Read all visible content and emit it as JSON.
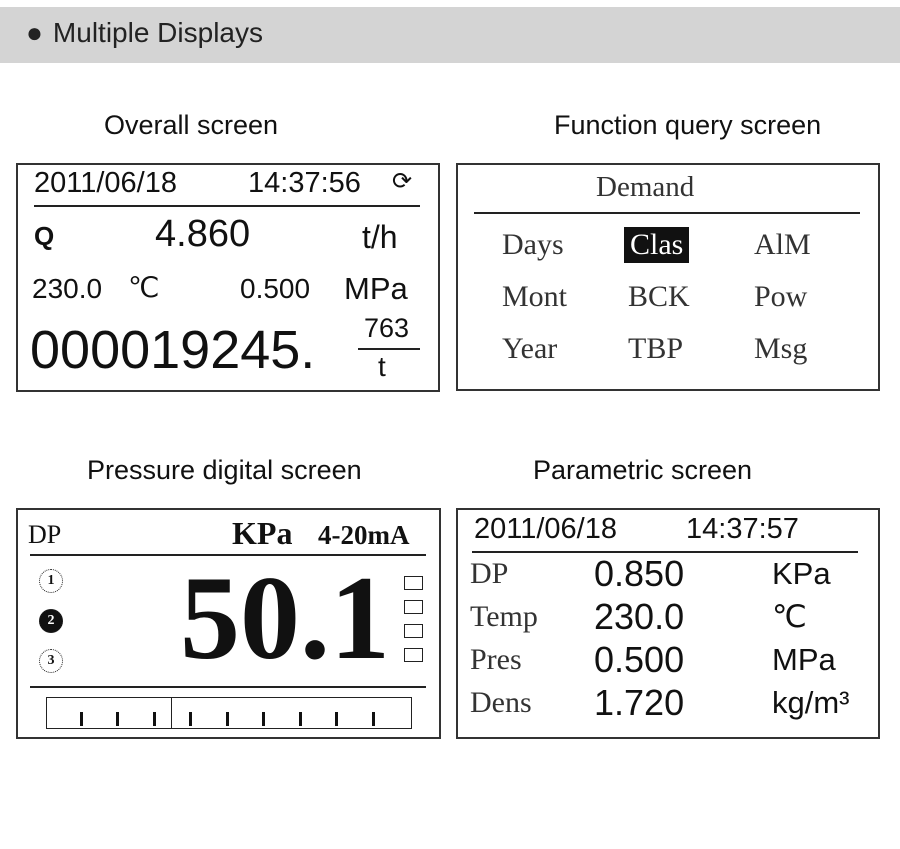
{
  "header": {
    "bullet": "●",
    "title": "Multiple Displays"
  },
  "overall": {
    "caption": "Overall screen",
    "date": "2011/06/18",
    "time": "14:37:56",
    "refresh_icon": "refresh-icon",
    "flow_label": "Q",
    "flow_value": "4.860",
    "flow_unit": "t/h",
    "temp_value": "230.0",
    "temp_unit": "℃",
    "pres_value": "0.500",
    "pres_unit": "MPa",
    "total_int": "000019245.",
    "total_frac": "763",
    "total_unit": "t"
  },
  "function": {
    "caption": "Function query screen",
    "title": "Demand",
    "items": [
      "Days",
      "Clas",
      "AlM",
      "Mont",
      "BCK",
      "Pow",
      "Year",
      "TBP",
      "Msg"
    ],
    "selected": "Clas"
  },
  "pressure": {
    "caption": "Pressure digital screen",
    "label": "DP",
    "unit": "KPa",
    "signal": "4-20mA",
    "value": "50.1",
    "channels": [
      "1",
      "2",
      "3"
    ],
    "active_channel": "2",
    "bar_level_percent": 34
  },
  "parametric": {
    "caption": "Parametric screen",
    "date": "2011/06/18",
    "time": "14:37:57",
    "rows": [
      {
        "label": "DP",
        "value": "0.850",
        "unit": "KPa"
      },
      {
        "label": "Temp",
        "value": "230.0",
        "unit": "℃"
      },
      {
        "label": "Pres",
        "value": "0.500",
        "unit": "MPa"
      },
      {
        "label": "Dens",
        "value": "1.720",
        "unit": "kg/m³"
      }
    ]
  }
}
